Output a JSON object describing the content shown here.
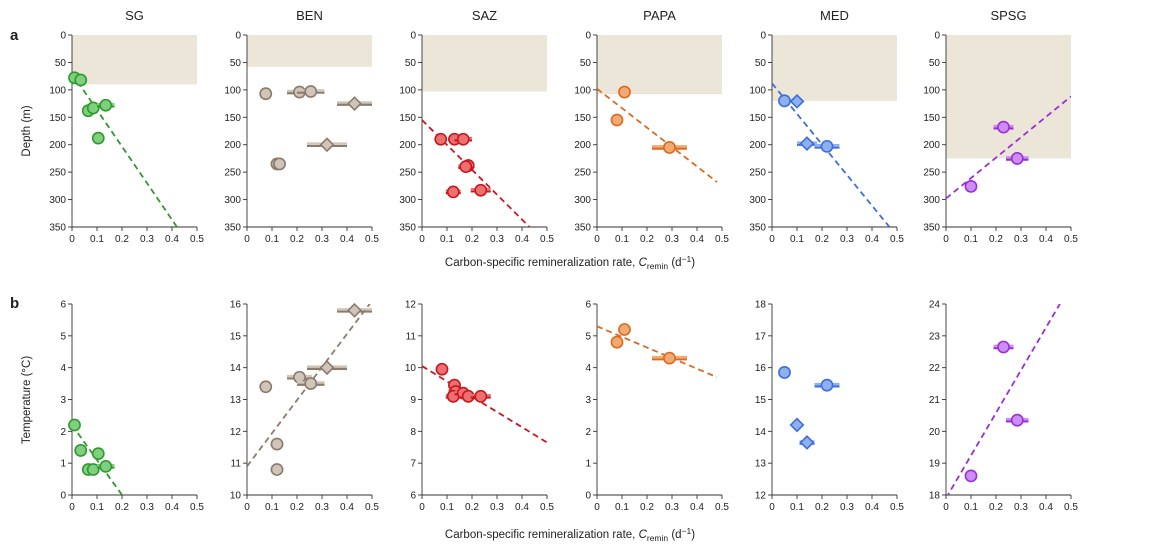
{
  "figure": {
    "panel_letters": [
      "a",
      "b"
    ],
    "xlabel_prefix": "Carbon-specific remineralization rate, ",
    "xlabel_symbol": "C",
    "xlabel_subscript": "remin",
    "xlabel_unit": " (d",
    "xlabel_unit_exp": "−1",
    "xlabel_suffix": ")",
    "ylabel_top": "Depth (m)",
    "ylabel_bottom": "Temperature (°C)"
  },
  "chart_data": [
    {
      "type": "scatter",
      "title": "SG",
      "row": "a",
      "color": "#2e9a2e",
      "fill": "#7fcf7f",
      "ylim": [
        350,
        0
      ],
      "yticks": [
        0,
        50,
        100,
        150,
        200,
        250,
        300,
        350
      ],
      "xlim": [
        0,
        0.5
      ],
      "xticks": [
        0,
        0.1,
        0.2,
        0.3,
        0.4,
        0.5
      ],
      "shade": 90,
      "points": [
        {
          "x": 0.01,
          "y": 78,
          "err": 0.01,
          "m": "circle"
        },
        {
          "x": 0.035,
          "y": 82,
          "err": 0.01,
          "m": "circle"
        },
        {
          "x": 0.065,
          "y": 138,
          "err": 0.02,
          "m": "circle"
        },
        {
          "x": 0.085,
          "y": 133,
          "err": 0.02,
          "m": "circle"
        },
        {
          "x": 0.135,
          "y": 128,
          "err": 0.035,
          "m": "circle"
        },
        {
          "x": 0.105,
          "y": 188,
          "err": 0.02,
          "m": "circle"
        }
      ],
      "fit": [
        [
          0.0,
          70
        ],
        [
          0.42,
          350
        ]
      ]
    },
    {
      "type": "scatter",
      "title": "BEN",
      "row": "a",
      "color": "#8c7b6b",
      "fill": "#cfc5ba",
      "ylim": [
        350,
        0
      ],
      "yticks": [
        0,
        50,
        100,
        150,
        200,
        250,
        300,
        350
      ],
      "xlim": [
        0,
        0.5
      ],
      "xticks": [
        0,
        0.1,
        0.2,
        0.3,
        0.4,
        0.5
      ],
      "shade": 58,
      "points": [
        {
          "x": 0.075,
          "y": 107,
          "err": 0.0,
          "m": "circle"
        },
        {
          "x": 0.21,
          "y": 104,
          "err": 0.05,
          "m": "circle"
        },
        {
          "x": 0.255,
          "y": 103,
          "err": 0.055,
          "m": "circle"
        },
        {
          "x": 0.43,
          "y": 125,
          "err": 0.07,
          "m": "diamond"
        },
        {
          "x": 0.32,
          "y": 200,
          "err": 0.08,
          "m": "diamond"
        },
        {
          "x": 0.12,
          "y": 235,
          "err": 0.025,
          "m": "circle"
        },
        {
          "x": 0.13,
          "y": 235,
          "err": 0.025,
          "m": "circle"
        }
      ],
      "fit": null
    },
    {
      "type": "scatter",
      "title": "SAZ",
      "row": "a",
      "color": "#c8181e",
      "fill": "#ec7070",
      "ylim": [
        350,
        0
      ],
      "yticks": [
        0,
        50,
        100,
        150,
        200,
        250,
        300,
        350
      ],
      "xlim": [
        0,
        0.5
      ],
      "xticks": [
        0,
        0.1,
        0.2,
        0.3,
        0.4,
        0.5
      ],
      "shade": 103,
      "points": [
        {
          "x": 0.075,
          "y": 190,
          "err": 0.02,
          "m": "circle"
        },
        {
          "x": 0.13,
          "y": 190,
          "err": 0.025,
          "m": "circle"
        },
        {
          "x": 0.165,
          "y": 190,
          "err": 0.035,
          "m": "circle"
        },
        {
          "x": 0.185,
          "y": 238,
          "err": 0.025,
          "m": "circle"
        },
        {
          "x": 0.175,
          "y": 240,
          "err": 0.03,
          "m": "circle"
        },
        {
          "x": 0.235,
          "y": 283,
          "err": 0.04,
          "m": "circle"
        },
        {
          "x": 0.125,
          "y": 286,
          "err": 0.03,
          "m": "circle"
        }
      ],
      "fit": [
        [
          0.0,
          155
        ],
        [
          0.43,
          350
        ]
      ]
    },
    {
      "type": "scatter",
      "title": "PAPA",
      "row": "a",
      "color": "#dd6a20",
      "fill": "#f2aa73",
      "ylim": [
        350,
        0
      ],
      "yticks": [
        0,
        50,
        100,
        150,
        200,
        250,
        300,
        350
      ],
      "xlim": [
        0,
        0.5
      ],
      "xticks": [
        0,
        0.1,
        0.2,
        0.3,
        0.4,
        0.5
      ],
      "shade": 108,
      "points": [
        {
          "x": 0.11,
          "y": 104,
          "err": 0.02,
          "m": "circle"
        },
        {
          "x": 0.08,
          "y": 155,
          "err": 0.0,
          "m": "circle"
        },
        {
          "x": 0.29,
          "y": 205,
          "err": 0.07,
          "m": "circle"
        }
      ],
      "fit": [
        [
          0.0,
          98
        ],
        [
          0.48,
          268
        ]
      ]
    },
    {
      "type": "scatter",
      "title": "MED",
      "row": "a",
      "color": "#3e6fd8",
      "fill": "#8fb0ee",
      "ylim": [
        350,
        0
      ],
      "yticks": [
        0,
        50,
        100,
        150,
        200,
        250,
        300,
        350
      ],
      "xlim": [
        0,
        0.5
      ],
      "xticks": [
        0,
        0.1,
        0.2,
        0.3,
        0.4,
        0.5
      ],
      "shade": 120,
      "points": [
        {
          "x": 0.05,
          "y": 120,
          "err": 0.02,
          "m": "circle"
        },
        {
          "x": 0.1,
          "y": 121,
          "err": 0.02,
          "m": "diamond"
        },
        {
          "x": 0.14,
          "y": 198,
          "err": 0.04,
          "m": "diamond"
        },
        {
          "x": 0.22,
          "y": 203,
          "err": 0.05,
          "m": "circle"
        }
      ],
      "fit": [
        [
          0.0,
          88
        ],
        [
          0.47,
          350
        ]
      ]
    },
    {
      "type": "scatter",
      "title": "SPSG",
      "row": "a",
      "color": "#9a2fd8",
      "fill": "#cf8cf2",
      "ylim": [
        350,
        0
      ],
      "yticks": [
        0,
        50,
        100,
        150,
        200,
        250,
        300,
        350
      ],
      "xlim": [
        0,
        0.5
      ],
      "xticks": [
        0,
        0.1,
        0.2,
        0.3,
        0.4,
        0.5
      ],
      "shade": 225,
      "points": [
        {
          "x": 0.23,
          "y": 168,
          "err": 0.04,
          "m": "circle"
        },
        {
          "x": 0.285,
          "y": 225,
          "err": 0.045,
          "m": "circle"
        },
        {
          "x": 0.1,
          "y": 276,
          "err": 0.015,
          "m": "circle"
        }
      ],
      "fit": [
        [
          0.0,
          298
        ],
        [
          0.5,
          112
        ]
      ]
    },
    {
      "type": "scatter",
      "title": "",
      "row": "b",
      "color": "#2e9a2e",
      "fill": "#7fcf7f",
      "ylim": [
        0,
        6
      ],
      "yticks": [
        0,
        1,
        2,
        3,
        4,
        5,
        6
      ],
      "xlim": [
        0,
        0.5
      ],
      "xticks": [
        0,
        0.1,
        0.2,
        0.3,
        0.4,
        0.5
      ],
      "shade": null,
      "points": [
        {
          "x": 0.01,
          "y": 2.2,
          "err": 0.01,
          "m": "circle"
        },
        {
          "x": 0.035,
          "y": 1.4,
          "err": 0.01,
          "m": "circle"
        },
        {
          "x": 0.065,
          "y": 0.8,
          "err": 0.02,
          "m": "circle"
        },
        {
          "x": 0.085,
          "y": 0.8,
          "err": 0.02,
          "m": "circle"
        },
        {
          "x": 0.105,
          "y": 1.3,
          "err": 0.02,
          "m": "circle"
        },
        {
          "x": 0.135,
          "y": 0.9,
          "err": 0.035,
          "m": "circle"
        }
      ],
      "fit": [
        [
          0.0,
          2.2
        ],
        [
          0.2,
          0.0
        ]
      ]
    },
    {
      "type": "scatter",
      "title": "",
      "row": "b",
      "color": "#8c7b6b",
      "fill": "#cfc5ba",
      "ylim": [
        10,
        16
      ],
      "yticks": [
        10,
        11,
        12,
        13,
        14,
        15,
        16
      ],
      "xlim": [
        0,
        0.5
      ],
      "xticks": [
        0,
        0.1,
        0.2,
        0.3,
        0.4,
        0.5
      ],
      "shade": null,
      "points": [
        {
          "x": 0.075,
          "y": 13.4,
          "err": 0.0,
          "m": "circle"
        },
        {
          "x": 0.21,
          "y": 13.7,
          "err": 0.05,
          "m": "circle"
        },
        {
          "x": 0.255,
          "y": 13.5,
          "err": 0.055,
          "m": "circle"
        },
        {
          "x": 0.32,
          "y": 14.0,
          "err": 0.08,
          "m": "diamond"
        },
        {
          "x": 0.43,
          "y": 15.8,
          "err": 0.07,
          "m": "diamond"
        },
        {
          "x": 0.12,
          "y": 11.6,
          "err": 0.025,
          "m": "circle"
        },
        {
          "x": 0.12,
          "y": 10.8,
          "err": 0.025,
          "m": "circle"
        }
      ],
      "fit": [
        [
          0.0,
          10.9
        ],
        [
          0.5,
          16.1
        ]
      ]
    },
    {
      "type": "scatter",
      "title": "",
      "row": "b",
      "color": "#c8181e",
      "fill": "#ec7070",
      "ylim": [
        6,
        12
      ],
      "yticks": [
        6,
        7,
        8,
        9,
        10,
        11,
        12
      ],
      "xlim": [
        0,
        0.5
      ],
      "xticks": [
        0,
        0.1,
        0.2,
        0.3,
        0.4,
        0.5
      ],
      "shade": null,
      "points": [
        {
          "x": 0.08,
          "y": 9.95,
          "err": 0.0,
          "m": "circle"
        },
        {
          "x": 0.13,
          "y": 9.45,
          "err": 0.025,
          "m": "circle"
        },
        {
          "x": 0.135,
          "y": 9.25,
          "err": 0.03,
          "m": "circle"
        },
        {
          "x": 0.125,
          "y": 9.1,
          "err": 0.03,
          "m": "circle"
        },
        {
          "x": 0.165,
          "y": 9.2,
          "err": 0.035,
          "m": "circle"
        },
        {
          "x": 0.185,
          "y": 9.1,
          "err": 0.03,
          "m": "circle"
        },
        {
          "x": 0.235,
          "y": 9.1,
          "err": 0.04,
          "m": "circle"
        }
      ],
      "fit": [
        [
          0.0,
          10.05
        ],
        [
          0.5,
          7.65
        ]
      ]
    },
    {
      "type": "scatter",
      "title": "",
      "row": "b",
      "color": "#dd6a20",
      "fill": "#f2aa73",
      "ylim": [
        0,
        6
      ],
      "yticks": [
        0,
        1,
        2,
        3,
        4,
        5,
        6
      ],
      "xlim": [
        0,
        0.5
      ],
      "xticks": [
        0,
        0.1,
        0.2,
        0.3,
        0.4,
        0.5
      ],
      "shade": null,
      "points": [
        {
          "x": 0.11,
          "y": 5.2,
          "err": 0.02,
          "m": "circle"
        },
        {
          "x": 0.08,
          "y": 4.8,
          "err": 0.0,
          "m": "circle"
        },
        {
          "x": 0.29,
          "y": 4.3,
          "err": 0.07,
          "m": "circle"
        }
      ],
      "fit": [
        [
          0.0,
          5.3
        ],
        [
          0.48,
          3.7
        ]
      ]
    },
    {
      "type": "scatter",
      "title": "",
      "row": "b",
      "color": "#3e6fd8",
      "fill": "#8fb0ee",
      "ylim": [
        12,
        18
      ],
      "yticks": [
        12,
        13,
        14,
        15,
        16,
        17,
        18
      ],
      "xlim": [
        0,
        0.5
      ],
      "xticks": [
        0,
        0.1,
        0.2,
        0.3,
        0.4,
        0.5
      ],
      "shade": null,
      "points": [
        {
          "x": 0.05,
          "y": 15.85,
          "err": 0.0,
          "m": "circle"
        },
        {
          "x": 0.22,
          "y": 15.45,
          "err": 0.05,
          "m": "circle"
        },
        {
          "x": 0.1,
          "y": 14.2,
          "err": 0.0,
          "m": "diamond"
        },
        {
          "x": 0.14,
          "y": 13.65,
          "err": 0.03,
          "m": "diamond"
        }
      ],
      "fit": null
    },
    {
      "type": "scatter",
      "title": "",
      "row": "b",
      "color": "#9a2fd8",
      "fill": "#cf8cf2",
      "ylim": [
        18,
        24
      ],
      "yticks": [
        18,
        19,
        20,
        21,
        22,
        23,
        24
      ],
      "xlim": [
        0,
        0.5
      ],
      "xticks": [
        0,
        0.1,
        0.2,
        0.3,
        0.4,
        0.5
      ],
      "shade": null,
      "points": [
        {
          "x": 0.23,
          "y": 22.65,
          "err": 0.04,
          "m": "circle"
        },
        {
          "x": 0.285,
          "y": 20.35,
          "err": 0.045,
          "m": "circle"
        },
        {
          "x": 0.1,
          "y": 18.6,
          "err": 0.015,
          "m": "circle"
        }
      ],
      "fit": [
        [
          0.0,
          17.9
        ],
        [
          0.5,
          24.6
        ]
      ]
    }
  ]
}
